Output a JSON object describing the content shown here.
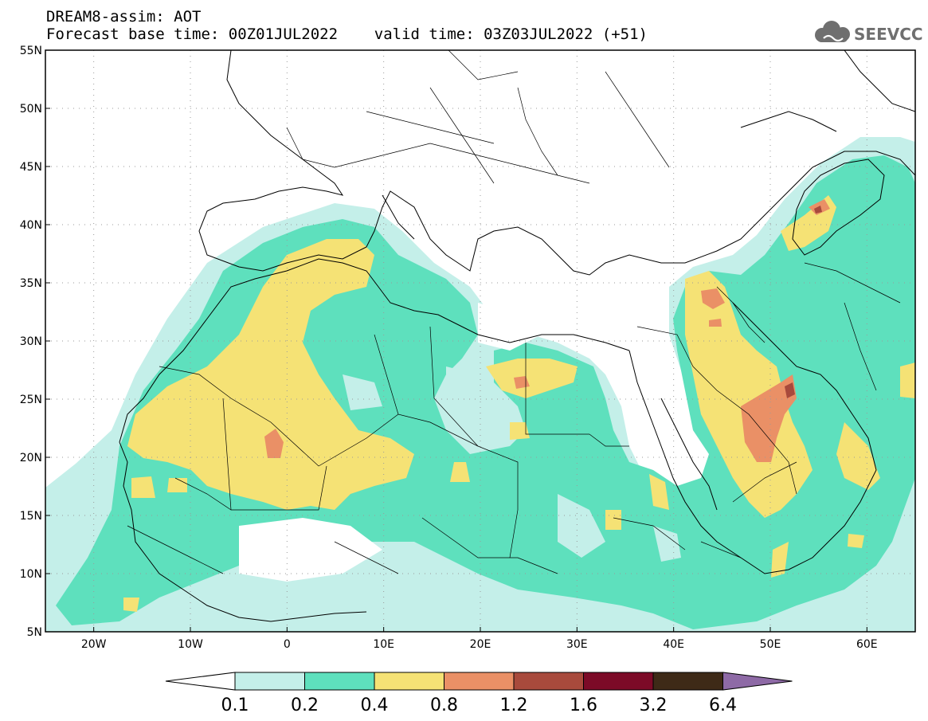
{
  "header": {
    "line1": "DREAM8-assim: AOT",
    "line2": "Forecast base time: 00Z01JUL2022    valid time: 03Z03JUL2022 (+51)"
  },
  "logo": {
    "text": "SEEVCCC",
    "icon": "cloud-icon",
    "color": "#6f6f6f"
  },
  "map": {
    "projection": "equirectangular",
    "lon_range": [
      -25,
      65
    ],
    "lat_range": [
      5,
      55
    ],
    "grid": "dotted",
    "lat_ticks": [
      {
        "value": 55,
        "label": "55N"
      },
      {
        "value": 50,
        "label": "50N"
      },
      {
        "value": 45,
        "label": "45N"
      },
      {
        "value": 40,
        "label": "40N"
      },
      {
        "value": 35,
        "label": "35N"
      },
      {
        "value": 30,
        "label": "30N"
      },
      {
        "value": 25,
        "label": "25N"
      },
      {
        "value": 20,
        "label": "20N"
      },
      {
        "value": 15,
        "label": "15N"
      },
      {
        "value": 10,
        "label": "10N"
      },
      {
        "value": 5,
        "label": "5N"
      }
    ],
    "lon_ticks": [
      {
        "value": -20,
        "label": "20W"
      },
      {
        "value": -10,
        "label": "10W"
      },
      {
        "value": 0,
        "label": "0"
      },
      {
        "value": 10,
        "label": "10E"
      },
      {
        "value": 20,
        "label": "20E"
      },
      {
        "value": 30,
        "label": "30E"
      },
      {
        "value": 40,
        "label": "40E"
      },
      {
        "value": 50,
        "label": "50E"
      },
      {
        "value": 60,
        "label": "60E"
      }
    ]
  },
  "legend": {
    "levels": [
      {
        "label": "0.1",
        "color": "#c4efe9"
      },
      {
        "label": "0.2",
        "color": "#5ee0bd"
      },
      {
        "label": "0.4",
        "color": "#f5e275"
      },
      {
        "label": "0.8",
        "color": "#ea9066"
      },
      {
        "label": "1.2",
        "color": "#a84a3c"
      },
      {
        "label": "1.6",
        "color": "#7c0a27"
      },
      {
        "label": "3.2",
        "color": "#3e2a17"
      },
      {
        "label": "6.4",
        "color": "#8e6aa6"
      }
    ],
    "low_color": "#ffffff"
  }
}
